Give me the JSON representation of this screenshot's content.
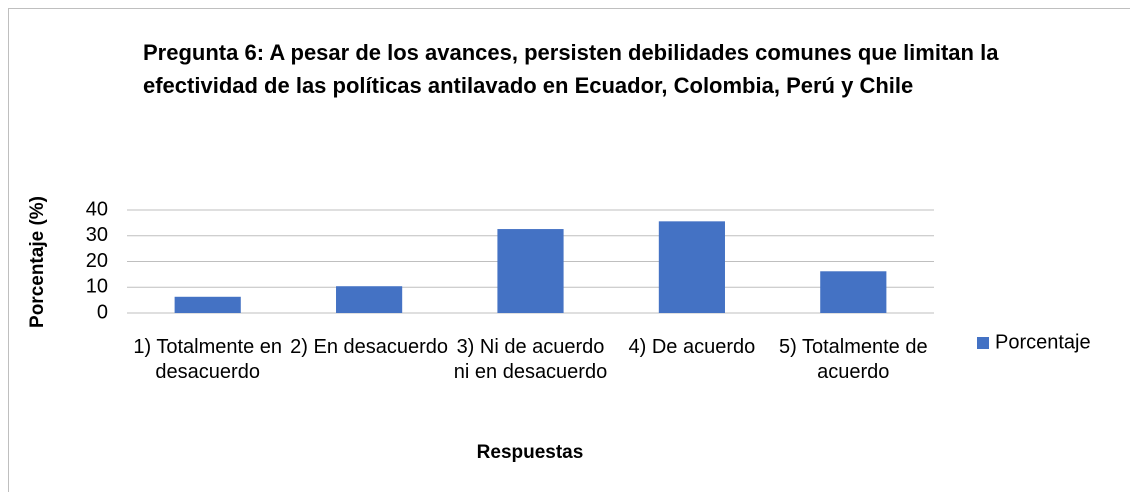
{
  "chart_data": {
    "type": "bar",
    "title": "Pregunta 6: A pesar de los avances, persisten debilidades comunes que limitan la efectividad de las políticas antilavado en Ecuador, Colombia, Perú y Chile",
    "x_label": "Respuestas",
    "y_label": "Porcentaje (%)",
    "categories": [
      "1) Totalmente en desacuerdo",
      "2) En desacuerdo",
      "3) Ni de acuerdo ni en desacuerdo",
      "4) De acuerdo",
      "5) Totalmente de acuerdo"
    ],
    "series": [
      {
        "name": "Porcentaje",
        "color": "#4472c4",
        "values": [
          6.3,
          10.4,
          32.6,
          35.6,
          16.2
        ]
      }
    ],
    "ylim": [
      0,
      40
    ],
    "yticks": [
      0,
      10,
      20,
      30,
      40
    ],
    "grid": true,
    "legend": "right"
  }
}
